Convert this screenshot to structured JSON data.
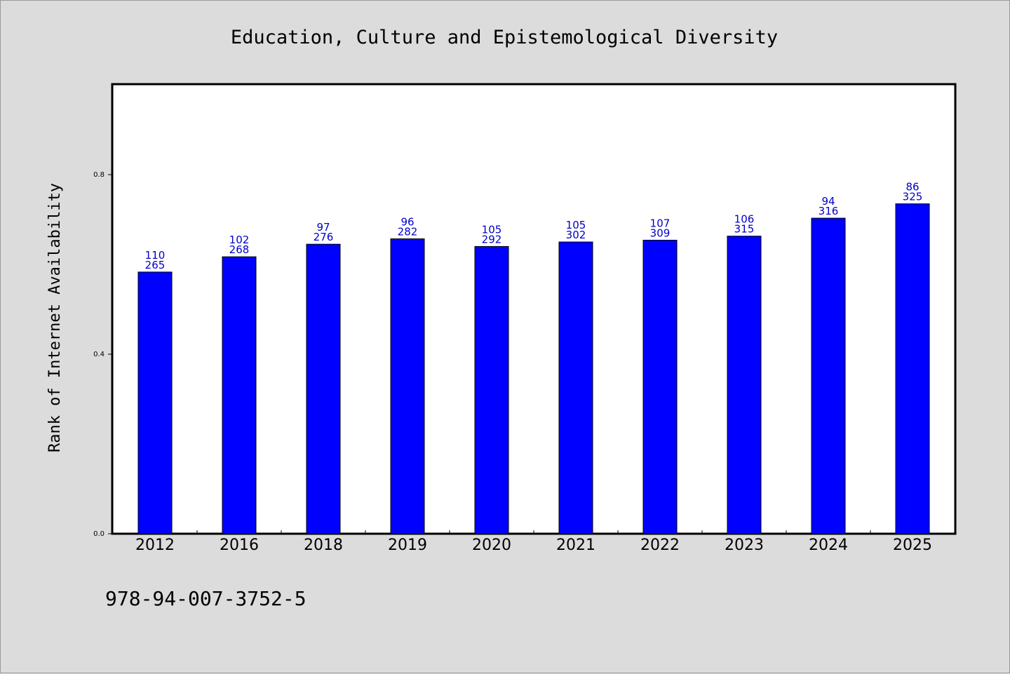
{
  "chart_data": {
    "type": "bar",
    "title": "Education, Culture and Epistemological Diversity",
    "xlabel": "",
    "ylabel": "Rank of Internet Availability",
    "categories": [
      "2012",
      "2016",
      "2018",
      "2019",
      "2020",
      "2021",
      "2022",
      "2023",
      "2024",
      "2025"
    ],
    "series": [
      {
        "values": [
          0.583,
          0.617,
          0.645,
          0.657,
          0.64,
          0.65,
          0.654,
          0.663,
          0.703,
          0.735
        ]
      }
    ],
    "data_labels": {
      "upper": [
        "110",
        "102",
        "97",
        "96",
        "105",
        "105",
        "107",
        "106",
        "94",
        "86"
      ],
      "lower": [
        "265",
        "268",
        "276",
        "282",
        "292",
        "302",
        "309",
        "315",
        "316",
        "325"
      ]
    },
    "yticks": [
      0.0,
      0.4,
      0.8
    ],
    "ytick_labels": [
      "0.0",
      "0.4",
      "0.8"
    ],
    "ylim": [
      0,
      1.0
    ],
    "grid": false,
    "legend": "none",
    "bar_color": "#0000ff",
    "label_color": "#0000c8"
  },
  "footer": {
    "isbn": "978-94-007-3752-5"
  }
}
